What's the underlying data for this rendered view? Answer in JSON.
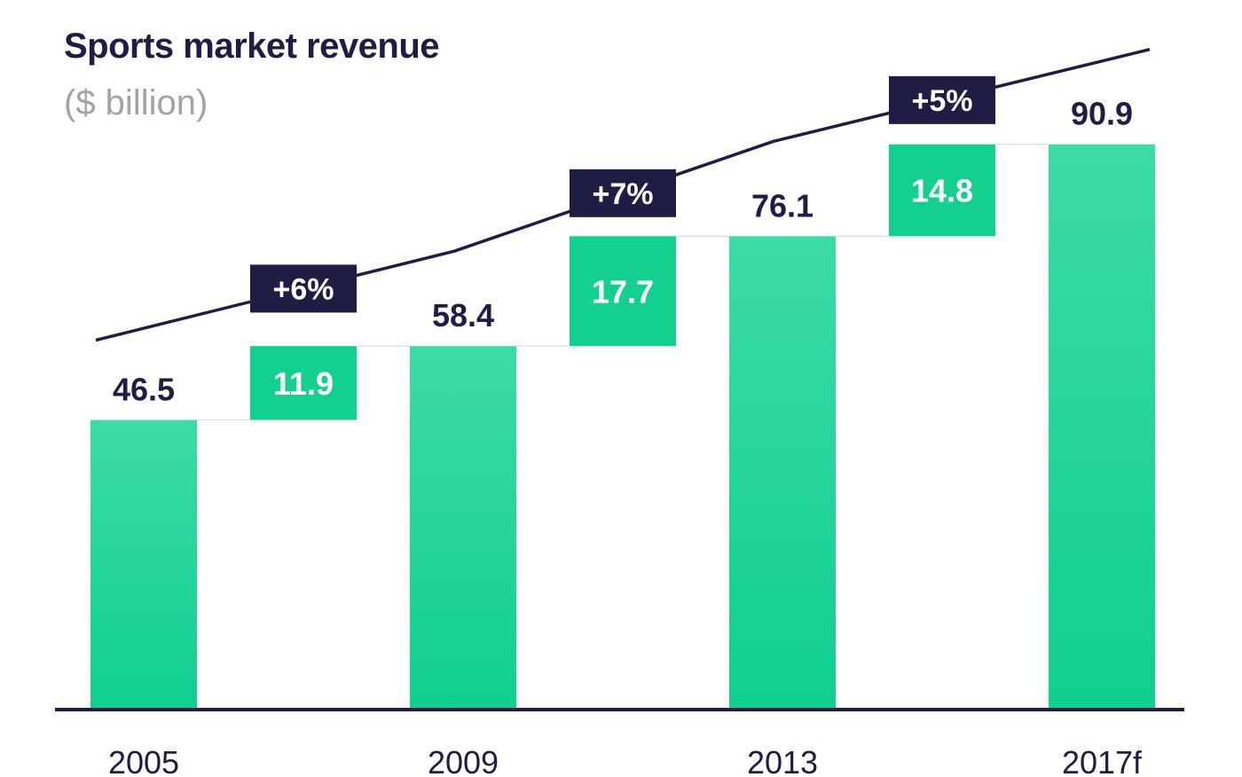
{
  "chart_data": {
    "type": "bar",
    "subtype": "waterfall",
    "title": "Sports market revenue",
    "subtitle": "($ billion)",
    "categories": [
      "2005",
      "2009",
      "2013",
      "2017f"
    ],
    "totals": [
      46.5,
      58.4,
      76.1,
      90.9
    ],
    "increments": [
      11.9,
      17.7,
      14.8
    ],
    "growth_labels": [
      "+6%",
      "+7%",
      "+5%"
    ],
    "trend_line": true,
    "grid": false,
    "colors": {
      "bar_top": "#3ddba6",
      "bar_bottom": "#0fcf8f",
      "increment": "#13d08f",
      "dark": "#1f1d44",
      "subtitle": "#a2a3a9"
    }
  }
}
